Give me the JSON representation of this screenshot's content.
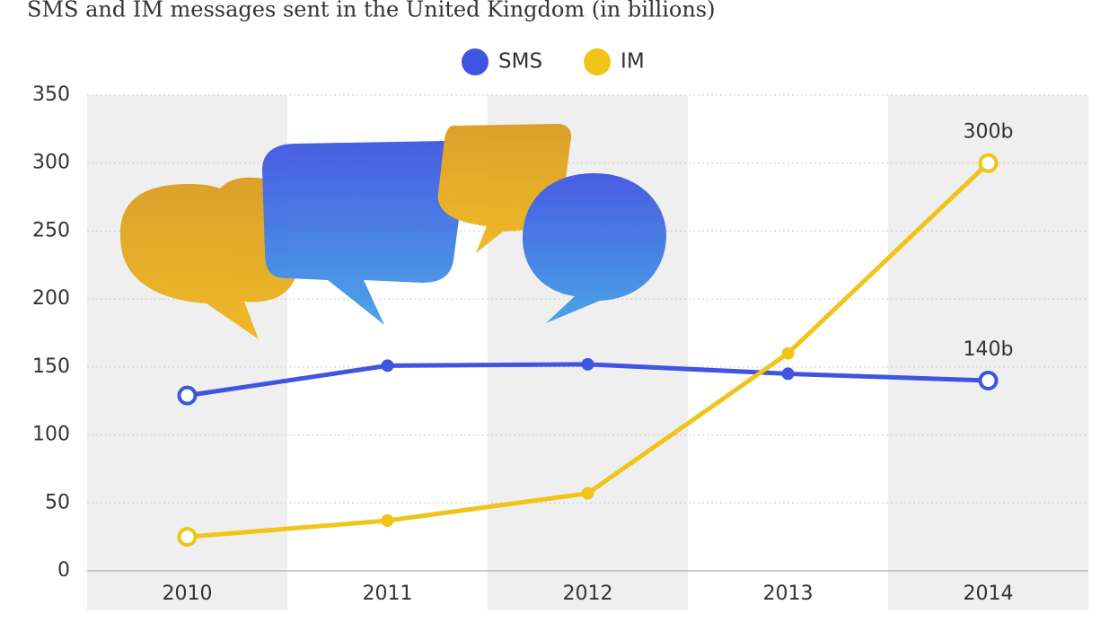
{
  "chart_data": {
    "type": "line",
    "title": "SMS and IM messages sent in the United Kingdom (in billions)",
    "categories": [
      "2010",
      "2011",
      "2012",
      "2013",
      "2014"
    ],
    "series": [
      {
        "name": "SMS",
        "color": "#3d55e0",
        "values": [
          129,
          151,
          152,
          145,
          140
        ],
        "value_labels": [
          null,
          null,
          null,
          null,
          "140b"
        ]
      },
      {
        "name": "IM",
        "color": "#f0c419",
        "values": [
          25,
          37,
          57,
          160,
          300
        ],
        "value_labels": [
          null,
          null,
          null,
          null,
          "300b"
        ]
      }
    ],
    "ylim": [
      0,
      350
    ],
    "yticks": [
      0,
      50,
      100,
      150,
      200,
      250,
      300,
      350
    ],
    "grid": true,
    "legend": "top"
  }
}
